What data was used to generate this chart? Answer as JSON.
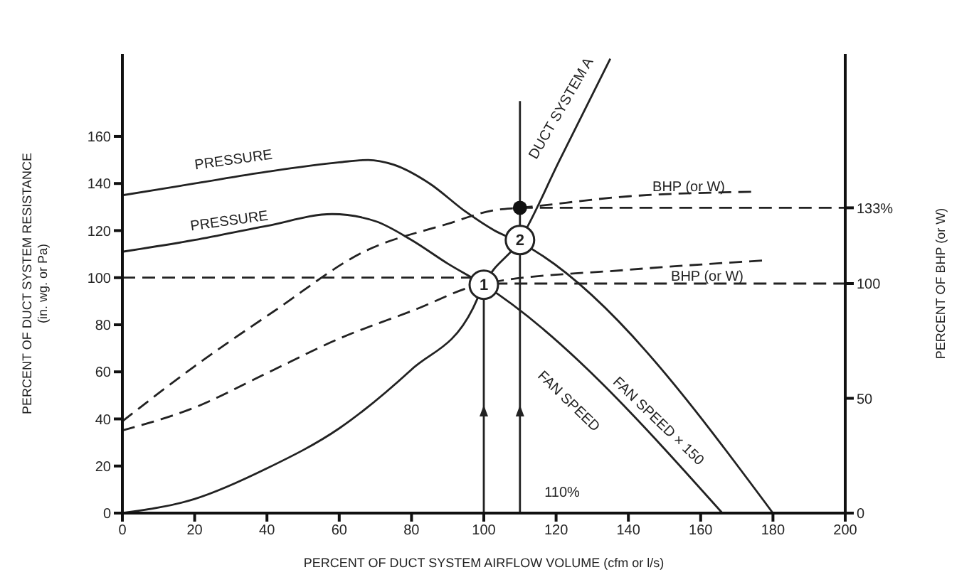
{
  "chart_data": {
    "type": "line",
    "xlabel": "PERCENT OF DUCT SYSTEM AIRFLOW VOLUME (cfm or l/s)",
    "ylabel": "PERCENT OF DUCT SYSTEM RESISTANCE\n(in. wg. or Pa)",
    "y2label": "PERCENT OF BHP (or W)",
    "xlim": [
      0,
      200
    ],
    "xticks": [
      0,
      20,
      40,
      60,
      80,
      100,
      120,
      140,
      160,
      180,
      200
    ],
    "ylim": [
      0,
      195
    ],
    "yticks": [
      0,
      20,
      40,
      60,
      80,
      100,
      120,
      140,
      160
    ],
    "y2lim": [
      0,
      200
    ],
    "y2ticks": [
      0,
      50,
      100,
      {
        "value": 133,
        "label": "133%"
      }
    ],
    "grid": false,
    "marker": "none",
    "series": [
      {
        "color": "#222222",
        "line_style": "solid",
        "x": [
          0,
          20,
          40,
          60,
          68,
          75,
          85,
          95,
          103,
          110,
          180
        ],
        "values": [
          135,
          140,
          145,
          149,
          150,
          148,
          140,
          128,
          120,
          115,
          0
        ]
      },
      {
        "color": "#222222",
        "line_style": "solid",
        "x": [
          0,
          20,
          40,
          58,
          70,
          80,
          90,
          100,
          166
        ],
        "values": [
          111,
          116,
          122,
          127,
          124,
          116,
          106,
          97,
          0
        ]
      },
      {
        "color": "#222222",
        "line_style": "solid",
        "x": [
          0,
          20,
          40,
          60,
          80,
          97,
          100,
          110,
          121,
          135
        ],
        "values": [
          0,
          6,
          19,
          36,
          61,
          87,
          97,
          116,
          150,
          193
        ]
      },
      {
        "color": "#222222",
        "line_style": "dashed",
        "axis": "y2",
        "x": [
          0,
          20,
          42,
          67,
          90,
          103,
          110,
          140,
          175
        ],
        "values": [
          40,
          64,
          88,
          114,
          126,
          132,
          133,
          138,
          140
        ]
      },
      {
        "color": "#222222",
        "line_style": "dashed",
        "axis": "y2",
        "x": [
          0,
          20,
          40,
          60,
          80,
          100,
          140,
          177
        ],
        "values": [
          36,
          46,
          61,
          76,
          88,
          100,
          106,
          110
        ]
      },
      {
        "color": "#222222",
        "line_style": "dashed",
        "axis": "y2",
        "x": [
          110,
          200
        ],
        "values": [
          133,
          133
        ]
      },
      {
        "color": "#222222",
        "line_style": "dashed",
        "axis": "y2",
        "x": [
          103,
          200
        ],
        "values": [
          100,
          100
        ]
      },
      {
        "color": "#222222",
        "line_style": "dashed",
        "x": [
          0,
          100
        ],
        "values": [
          100,
          100
        ]
      },
      {
        "color": "#222222",
        "line_style": "solid",
        "x": [
          100,
          100
        ],
        "values": [
          0,
          97
        ]
      },
      {
        "color": "#222222",
        "line_style": "solid",
        "x": [
          110,
          110
        ],
        "values": [
          0,
          175
        ]
      },
      {
        "type": "scatter",
        "marker": "circle",
        "color": "#111111",
        "axis": "y2",
        "x": [
          110
        ],
        "values": [
          133
        ]
      }
    ],
    "annotations": [
      {
        "text": "1",
        "x": 100,
        "y": 97
      },
      {
        "text": "2",
        "x": 110,
        "y": 116
      },
      "PRESSURE",
      "PRESSURE",
      "DUCT SYSTEM A",
      "BHP (or W)",
      "BHP (or W)",
      "FAN SPEED",
      "FAN SPEED × 150",
      "110%"
    ]
  }
}
